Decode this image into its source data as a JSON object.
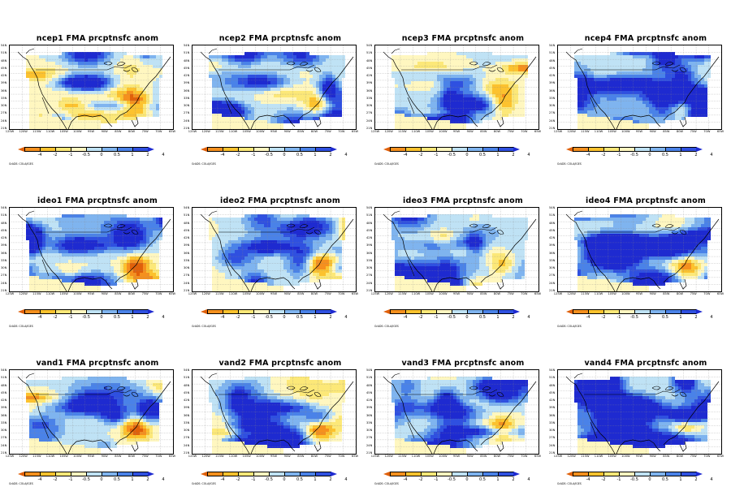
{
  "panels": [
    {
      "title": "ncep1 FMA prcptnsfc anom",
      "seed": 11,
      "cool_bias": 0.15
    },
    {
      "title": "ncep2 FMA prcptnsfc anom",
      "seed": 23,
      "cool_bias": 0.2
    },
    {
      "title": "ncep3 FMA prcptnsfc anom",
      "seed": 37,
      "cool_bias": 0.05
    },
    {
      "title": "ncep4 FMA prcptnsfc anom",
      "seed": 41,
      "cool_bias": 0.35
    },
    {
      "title": "ideo1 FMA prcptnsfc anom",
      "seed": 53,
      "cool_bias": 0.15
    },
    {
      "title": "ideo2 FMA prcptnsfc anom",
      "seed": 61,
      "cool_bias": 0.05
    },
    {
      "title": "ideo3 FMA prcptnsfc anom",
      "seed": 73,
      "cool_bias": 0.1
    },
    {
      "title": "ideo4 FMA prcptnsfc anom",
      "seed": 89,
      "cool_bias": 0.4
    },
    {
      "title": "vand1 FMA prcptnsfc anom",
      "seed": 97,
      "cool_bias": 0.1
    },
    {
      "title": "vand2 FMA prcptnsfc anom",
      "seed": 103,
      "cool_bias": 0.15
    },
    {
      "title": "vand3 FMA prcptnsfc anom",
      "seed": 113,
      "cool_bias": 0.2
    },
    {
      "title": "vand4 FMA prcptnsfc anom",
      "seed": 127,
      "cool_bias": 0.45
    }
  ],
  "lat_labels": [
    "54N",
    "51N",
    "48N",
    "45N",
    "42N",
    "39N",
    "36N",
    "33N",
    "30N",
    "27N",
    "24N",
    "21N"
  ],
  "lon_labels": [
    "125W",
    "120W",
    "115W",
    "110W",
    "105W",
    "100W",
    "95W",
    "90W",
    "85W",
    "80W",
    "75W",
    "70W",
    "65W"
  ],
  "colorbar_labels_top": [
    "-4",
    "-2",
    "-1",
    "-0.5",
    "0",
    "0.5",
    "1",
    "2",
    "4"
  ],
  "colorbar_labels_bottom": [
    "-4",
    "-2",
    "-1",
    "-0.5",
    "0",
    "0.5",
    "1",
    "2",
    "4"
  ],
  "colorbar_colors": [
    "#e0600a",
    "#f5901e",
    "#fcc22e",
    "#fce878",
    "#fff7c0",
    "#bfe2f5",
    "#7fb4ef",
    "#4a82e8",
    "#2f50e0",
    "#1e2ad0"
  ],
  "credit": "GrADS: COLA/IGES"
}
